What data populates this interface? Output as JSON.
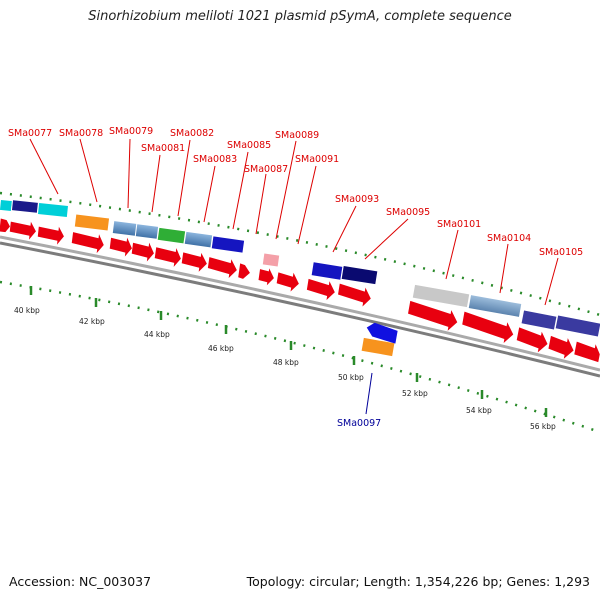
{
  "title": "Sinorhizobium meliloti 1021 plasmid pSymA, complete sequence",
  "footer": {
    "accession": "Accession: NC_003037",
    "topology": "Topology: circular; Length: 1,354,226 bp; Genes: 1,293"
  },
  "colors": {
    "forward_gene": "#e8000f",
    "forward_label": "#dd0000",
    "reverse_label": "#000099",
    "backbone": "#888888",
    "tick_green": "#228822"
  },
  "kbp_labels": [
    "40 kbp",
    "42 kbp",
    "44 kbp",
    "46 kbp",
    "48 kbp",
    "50 kbp",
    "52 kbp",
    "54 kbp",
    "56 kbp"
  ],
  "gene_labels": [
    {
      "name": "SMa0077",
      "strand": "+"
    },
    {
      "name": "SMa0078",
      "strand": "+"
    },
    {
      "name": "SMa0079",
      "strand": "+"
    },
    {
      "name": "SMa0081",
      "strand": "+"
    },
    {
      "name": "SMa0082",
      "strand": "+"
    },
    {
      "name": "SMa0083",
      "strand": "+"
    },
    {
      "name": "SMa0085",
      "strand": "+"
    },
    {
      "name": "SMa0087",
      "strand": "+"
    },
    {
      "name": "SMa0089",
      "strand": "+"
    },
    {
      "name": "SMa0091",
      "strand": "+"
    },
    {
      "name": "SMa0093",
      "strand": "+"
    },
    {
      "name": "SMa0095",
      "strand": "+"
    },
    {
      "name": "SMa0101",
      "strand": "+"
    },
    {
      "name": "SMa0104",
      "strand": "+"
    },
    {
      "name": "SMa0105",
      "strand": "+"
    },
    {
      "name": "SMa0097",
      "strand": "-"
    }
  ]
}
